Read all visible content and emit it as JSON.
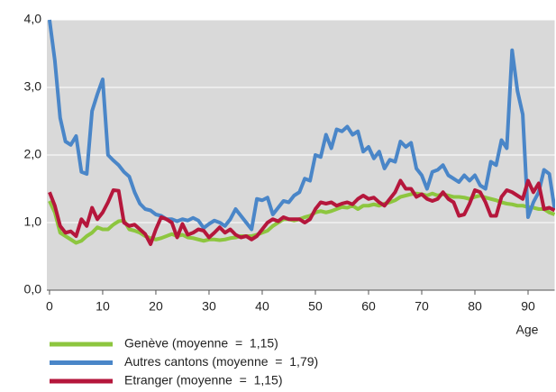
{
  "chart_data": {
    "type": "line",
    "x_label": "Age",
    "x": [
      0,
      1,
      2,
      3,
      4,
      5,
      6,
      7,
      8,
      9,
      10,
      11,
      12,
      13,
      14,
      15,
      16,
      17,
      18,
      19,
      20,
      21,
      22,
      23,
      24,
      25,
      26,
      27,
      28,
      29,
      30,
      31,
      32,
      33,
      34,
      35,
      36,
      37,
      38,
      39,
      40,
      41,
      42,
      43,
      44,
      45,
      46,
      47,
      48,
      49,
      50,
      51,
      52,
      53,
      54,
      55,
      56,
      57,
      58,
      59,
      60,
      61,
      62,
      63,
      64,
      65,
      66,
      67,
      68,
      69,
      70,
      71,
      72,
      73,
      74,
      75,
      76,
      77,
      78,
      79,
      80,
      81,
      82,
      83,
      84,
      85,
      86,
      87,
      88,
      89,
      90,
      91,
      92,
      93,
      94,
      95
    ],
    "xlim": [
      -0.5,
      95
    ],
    "xticks": [
      0,
      10,
      20,
      30,
      40,
      50,
      60,
      70,
      80,
      90
    ],
    "ylim": [
      0,
      4
    ],
    "yticks": [
      {
        "value": 0,
        "label": "0,0"
      },
      {
        "value": 1,
        "label": "1,0"
      },
      {
        "value": 2,
        "label": "2,0"
      },
      {
        "value": 3,
        "label": "3,0"
      },
      {
        "value": 4,
        "label": "4,0"
      }
    ],
    "grid": true,
    "legend": "bottom",
    "series": [
      {
        "name": "Genève (moyenne  =  1,15)",
        "color": "#8dc63f",
        "values": [
          1.32,
          1.15,
          0.85,
          0.8,
          0.75,
          0.7,
          0.73,
          0.8,
          0.85,
          0.93,
          0.9,
          0.9,
          0.97,
          1.02,
          1.03,
          0.9,
          0.88,
          0.85,
          0.8,
          0.77,
          0.75,
          0.77,
          0.8,
          0.83,
          0.8,
          0.82,
          0.78,
          0.77,
          0.75,
          0.73,
          0.75,
          0.75,
          0.74,
          0.75,
          0.77,
          0.78,
          0.8,
          0.8,
          0.8,
          0.82,
          0.85,
          0.88,
          0.95,
          1.0,
          1.05,
          1.05,
          1.03,
          1.05,
          1.08,
          1.1,
          1.15,
          1.17,
          1.15,
          1.17,
          1.2,
          1.23,
          1.22,
          1.25,
          1.2,
          1.25,
          1.25,
          1.27,
          1.25,
          1.28,
          1.3,
          1.33,
          1.38,
          1.4,
          1.42,
          1.43,
          1.42,
          1.4,
          1.43,
          1.4,
          1.42,
          1.4,
          1.38,
          1.38,
          1.37,
          1.35,
          1.38,
          1.4,
          1.37,
          1.35,
          1.33,
          1.3,
          1.28,
          1.27,
          1.25,
          1.25,
          1.23,
          1.22,
          1.2,
          1.2,
          1.15,
          1.12
        ]
      },
      {
        "name": "Autres cantons (moyenne  =  1,79)",
        "color": "#4a86c8",
        "values": [
          4.0,
          3.4,
          2.55,
          2.2,
          2.15,
          2.28,
          1.75,
          1.72,
          2.65,
          2.9,
          3.12,
          2.0,
          1.92,
          1.85,
          1.75,
          1.68,
          1.45,
          1.28,
          1.2,
          1.18,
          1.12,
          1.1,
          1.05,
          1.05,
          1.02,
          1.05,
          1.03,
          1.07,
          1.03,
          0.92,
          0.98,
          1.03,
          1.0,
          0.95,
          1.05,
          1.2,
          1.1,
          1.0,
          0.9,
          1.35,
          1.33,
          1.37,
          1.12,
          1.22,
          1.32,
          1.3,
          1.4,
          1.45,
          1.65,
          1.62,
          2.0,
          1.97,
          2.3,
          2.1,
          2.38,
          2.35,
          2.42,
          2.3,
          2.35,
          2.05,
          2.12,
          1.95,
          2.05,
          1.8,
          1.93,
          1.9,
          2.2,
          2.12,
          2.18,
          1.8,
          1.7,
          1.5,
          1.75,
          1.78,
          1.85,
          1.7,
          1.65,
          1.6,
          1.7,
          1.62,
          1.7,
          1.55,
          1.5,
          1.9,
          1.85,
          2.22,
          2.1,
          3.55,
          2.95,
          2.6,
          1.08,
          1.3,
          1.45,
          1.78,
          1.72,
          1.2
        ]
      },
      {
        "name": "Etranger (moyenne  =  1,15)",
        "color": "#b5173c",
        "values": [
          1.45,
          1.25,
          0.95,
          0.85,
          0.87,
          0.8,
          1.05,
          0.95,
          1.22,
          1.05,
          1.15,
          1.3,
          1.48,
          1.47,
          1.0,
          0.95,
          0.97,
          0.9,
          0.83,
          0.68,
          0.9,
          1.08,
          1.05,
          1.0,
          0.78,
          0.98,
          0.82,
          0.85,
          0.9,
          0.88,
          0.78,
          0.85,
          0.93,
          0.85,
          0.9,
          0.82,
          0.78,
          0.8,
          0.75,
          0.8,
          0.9,
          1.0,
          1.05,
          1.02,
          1.08,
          1.05,
          1.05,
          1.05,
          1.0,
          1.05,
          1.2,
          1.3,
          1.28,
          1.3,
          1.25,
          1.28,
          1.3,
          1.27,
          1.35,
          1.4,
          1.35,
          1.37,
          1.3,
          1.25,
          1.35,
          1.45,
          1.62,
          1.5,
          1.5,
          1.38,
          1.42,
          1.35,
          1.32,
          1.35,
          1.45,
          1.35,
          1.3,
          1.1,
          1.12,
          1.28,
          1.48,
          1.45,
          1.3,
          1.1,
          1.1,
          1.38,
          1.48,
          1.45,
          1.4,
          1.35,
          1.62,
          1.45,
          1.58,
          1.2,
          1.22,
          1.18
        ]
      }
    ]
  }
}
